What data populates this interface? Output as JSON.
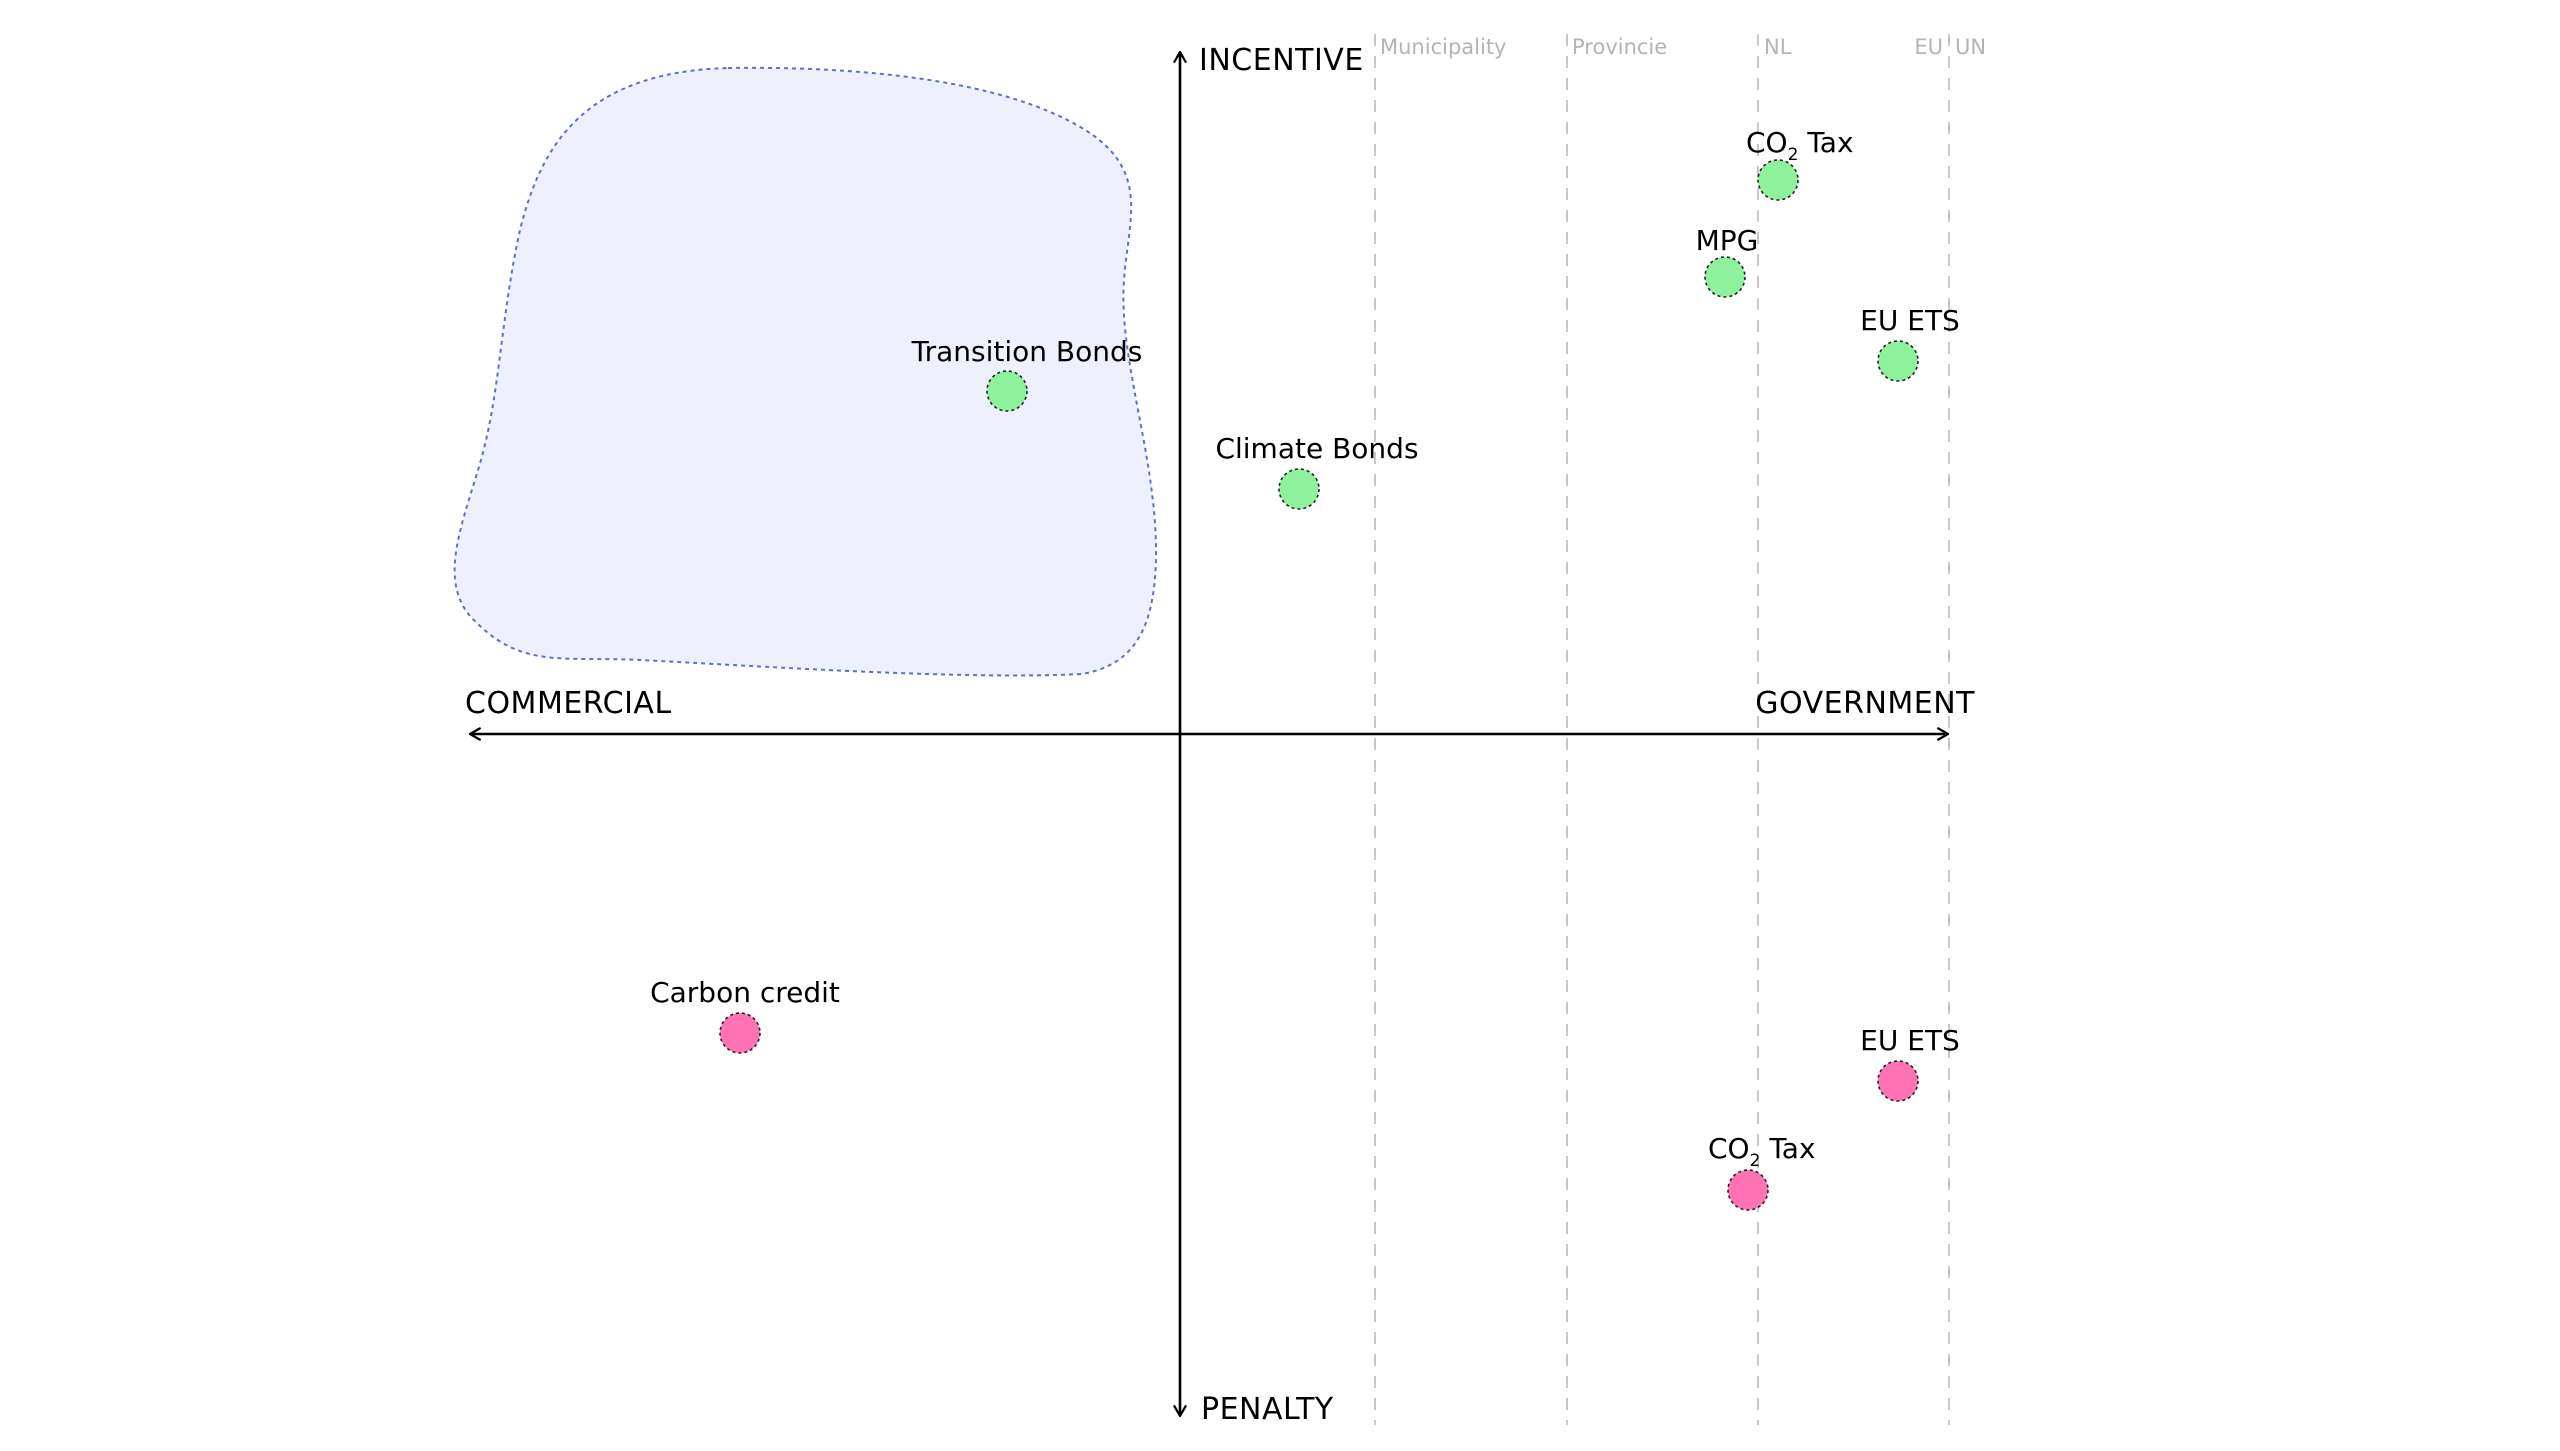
{
  "axes": {
    "top": "INCENTIVE",
    "bottom": "PENALTY",
    "left": "COMMERCIAL",
    "right": "GOVERNMENT"
  },
  "tiers": [
    {
      "key": "municipality",
      "label": "Municipality"
    },
    {
      "key": "provincie",
      "label": "Provincie"
    },
    {
      "key": "nl",
      "label": "NL"
    },
    {
      "key": "eu",
      "label": "EU"
    },
    {
      "key": "un",
      "label": "UN"
    }
  ],
  "colors": {
    "incentive": "#8df29b",
    "penalty": "#ff72b3",
    "region_fill": "#eef1fd",
    "region_stroke": "#5b6fcf",
    "tier_line": "#c8c8c8",
    "axis": "#000000"
  },
  "points": [
    {
      "key": "co2-tax-incentive",
      "type": "incentive",
      "label_main": "CO",
      "label_sub": "2",
      "label_rest": " Tax"
    },
    {
      "key": "mpg",
      "type": "incentive",
      "label_main": "MPG",
      "label_sub": "",
      "label_rest": ""
    },
    {
      "key": "eu-ets-incentive",
      "type": "incentive",
      "label_main": "EU ETS",
      "label_sub": "",
      "label_rest": ""
    },
    {
      "key": "transition-bonds",
      "type": "incentive",
      "label_main": "Transition Bonds",
      "label_sub": "",
      "label_rest": ""
    },
    {
      "key": "climate-bonds",
      "type": "incentive",
      "label_main": "Climate Bonds",
      "label_sub": "",
      "label_rest": ""
    },
    {
      "key": "carbon-credit",
      "type": "penalty",
      "label_main": "Carbon credit",
      "label_sub": "",
      "label_rest": ""
    },
    {
      "key": "eu-ets-penalty",
      "type": "penalty",
      "label_main": "EU ETS",
      "label_sub": "",
      "label_rest": ""
    },
    {
      "key": "co2-tax-penalty",
      "type": "penalty",
      "label_main": "CO",
      "label_sub": "2",
      "label_rest": " Tax"
    }
  ]
}
